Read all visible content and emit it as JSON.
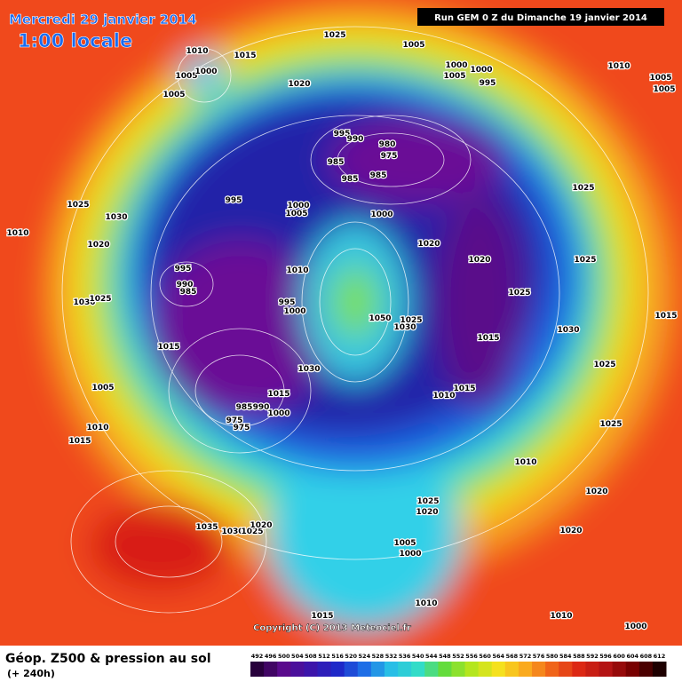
{
  "header": {
    "date": "Mercredi 29 janvier 2014",
    "time": "1:00 locale",
    "run": "Run GEM 0 Z du Dimanche 19 janvier 2014"
  },
  "footer": {
    "title": "Géop. Z500 & pression au sol",
    "subtitle": "(+ 240h)",
    "copyright": "Copyright (C) 2013 Meteociel.fr"
  },
  "legend": {
    "values": [
      "492",
      "496",
      "500",
      "504",
      "508",
      "512",
      "516",
      "520",
      "524",
      "528",
      "532",
      "536",
      "540",
      "544",
      "548",
      "552",
      "556",
      "560",
      "564",
      "568",
      "572",
      "576",
      "580",
      "584",
      "588",
      "592",
      "596",
      "600",
      "604",
      "608",
      "612"
    ]
  },
  "isobar_labels": [
    "1010",
    "1005",
    "1000",
    "1005",
    "1015",
    "1025",
    "1005",
    "1020",
    "1000",
    "1005",
    "1000",
    "995",
    "1010",
    "1005",
    "1005",
    "995",
    "990",
    "980",
    "975",
    "985",
    "985",
    "985",
    "995",
    "1000",
    "1005",
    "1000",
    "1025",
    "1025",
    "1030",
    "1010",
    "1020",
    "1020",
    "1020",
    "1025",
    "995",
    "990",
    "985",
    "1010",
    "1030",
    "1025",
    "995",
    "1000",
    "1050",
    "1030",
    "1025",
    "1025",
    "1015",
    "1030",
    "1015",
    "1015",
    "1030",
    "1025",
    "1005",
    "1015",
    "1010",
    "1015",
    "985",
    "990",
    "1000",
    "975",
    "975",
    "1025",
    "1010",
    "1015",
    "1010",
    "1020",
    "1025",
    "1020",
    "1035",
    "1030",
    "1025",
    "1020",
    "1020",
    "1005",
    "1000",
    "1010",
    "1015",
    "1010",
    "1000"
  ]
}
